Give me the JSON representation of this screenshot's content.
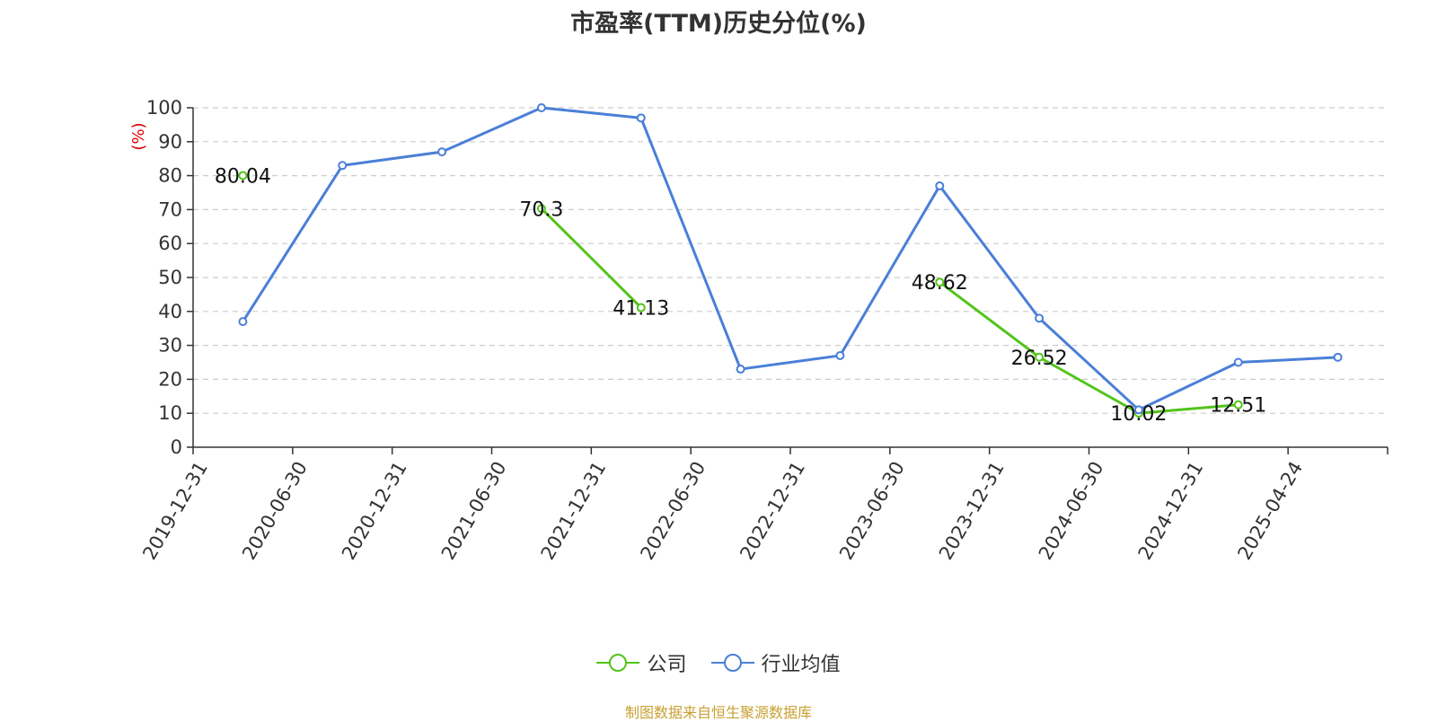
{
  "chart_data": {
    "type": "line",
    "title": "市盈率(TTM)历史分位(%)",
    "ylabel": "(%)",
    "xlabel": "",
    "ylim": [
      0,
      100
    ],
    "yticks": [
      0,
      10,
      20,
      30,
      40,
      50,
      60,
      70,
      80,
      90,
      100
    ],
    "categories": [
      "2019-12-31",
      "2020-06-30",
      "2020-12-31",
      "2021-06-30",
      "2021-12-31",
      "2022-06-30",
      "2022-12-31",
      "2023-06-30",
      "2023-12-31",
      "2024-06-30",
      "2024-12-31",
      "2025-04-24"
    ],
    "grid": true,
    "legend_position": "bottom",
    "series": [
      {
        "name": "公司",
        "color": "#52c41a",
        "values": [
          80.04,
          null,
          null,
          70.3,
          41.13,
          null,
          null,
          48.62,
          26.52,
          10.02,
          12.51,
          null
        ],
        "labels": [
          "80.04",
          null,
          null,
          "70.3",
          "41.13",
          null,
          null,
          "48.62",
          "26.52",
          "10.02",
          "12.51",
          null
        ]
      },
      {
        "name": "行业均值",
        "color": "#4a7fd8",
        "values": [
          37,
          83,
          87,
          100,
          97,
          23,
          27,
          77,
          38,
          11,
          25,
          26.5
        ]
      }
    ]
  },
  "source": "制图数据来自恒生聚源数据库"
}
